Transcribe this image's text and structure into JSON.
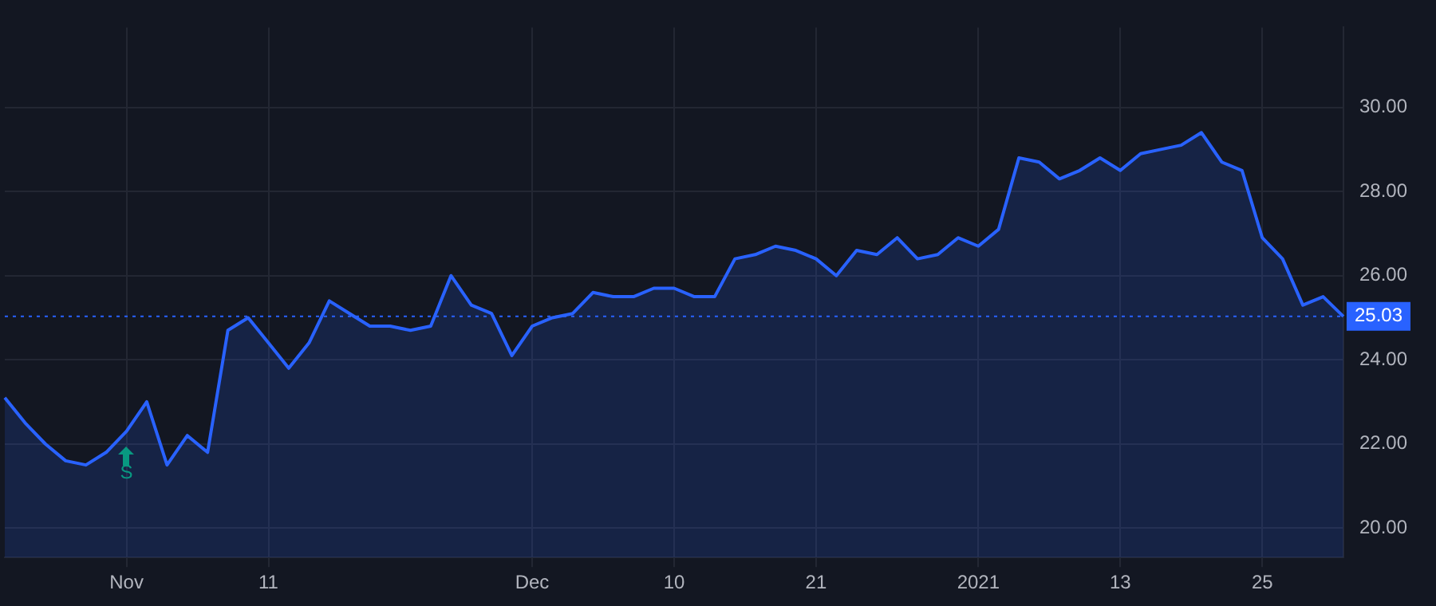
{
  "chart_data": {
    "type": "area",
    "categories": [
      null,
      null,
      null,
      null,
      null,
      null,
      "Nov",
      null,
      null,
      null,
      null,
      null,
      null,
      "11",
      null,
      null,
      null,
      null,
      null,
      null,
      null,
      null,
      null,
      null,
      null,
      null,
      "Dec",
      null,
      null,
      null,
      null,
      null,
      null,
      "10",
      null,
      null,
      null,
      null,
      null,
      null,
      "21",
      null,
      null,
      null,
      null,
      null,
      null,
      null,
      "2021",
      null,
      null,
      null,
      null,
      null,
      null,
      "13",
      null,
      null,
      null,
      null,
      null,
      null,
      "25",
      null,
      null,
      null,
      null
    ],
    "series": [
      {
        "color": "#2962ff",
        "values": [
          23.1,
          22.5,
          22.0,
          21.6,
          21.5,
          21.8,
          22.3,
          23.0,
          21.5,
          22.2,
          21.8,
          24.7,
          25.0,
          24.4,
          23.8,
          24.4,
          25.4,
          25.1,
          24.8,
          24.8,
          24.7,
          24.8,
          26.0,
          25.3,
          25.1,
          24.1,
          24.8,
          25.0,
          25.1,
          25.6,
          25.5,
          25.5,
          25.7,
          25.7,
          25.5,
          25.5,
          26.4,
          26.5,
          26.7,
          26.6,
          26.4,
          26.0,
          26.6,
          26.5,
          26.9,
          26.4,
          26.5,
          26.9,
          26.7,
          27.1,
          28.8,
          28.7,
          28.3,
          28.5,
          28.8,
          28.5,
          28.9,
          29.0,
          29.1,
          29.4,
          28.7,
          28.5,
          26.9,
          26.4,
          25.3,
          25.5,
          25.03
        ]
      }
    ],
    "ylim": [
      19.3,
      31.9
    ],
    "yticks": [
      {
        "value": 20,
        "label": "20.00"
      },
      {
        "value": 22,
        "label": "22.00"
      },
      {
        "value": 24,
        "label": "24.00"
      },
      {
        "value": 26,
        "label": "26.00"
      },
      {
        "value": 28,
        "label": "28.00"
      },
      {
        "value": 30,
        "label": "30.00"
      }
    ],
    "ref_lines": [
      {
        "axis": "y",
        "value": 25.03,
        "label": "25.03",
        "color": "#2962ff",
        "line_style": "dotted"
      }
    ],
    "annotations": [
      "S"
    ],
    "grid": true,
    "legend": false,
    "marker": "none",
    "line_style": "solid"
  }
}
